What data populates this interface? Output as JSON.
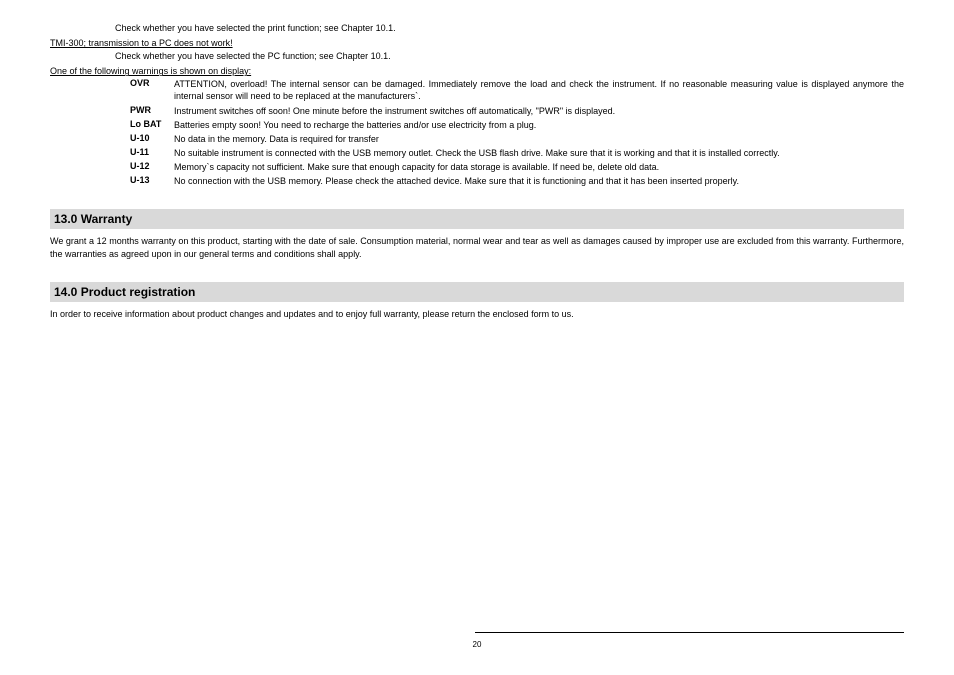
{
  "top": {
    "line1": "Check whether you have selected the print function; see Chapter 10.1.",
    "sub1": "TMI-300; transmission to a PC does not work!",
    "line2": "Check whether you have selected the PC function; see Chapter 10.1.",
    "sub2": "One of the following warnings is shown on display:"
  },
  "warnings": [
    {
      "code": "OVR",
      "desc": "ATTENTION, overload! The internal sensor can be damaged. Immediately remove the load and check the instrument. If no reasonable measuring value is displayed anymore the internal sensor will need to be replaced at the manufacturers`."
    },
    {
      "code": "PWR",
      "desc": "Instrument switches off soon! One minute before the instrument switches off automatically, \"PWR\" is displayed."
    },
    {
      "code": "Lo BAT",
      "desc": "Batteries empty soon! You need to recharge the batteries and/or use electricity from a plug."
    },
    {
      "code": "U-10",
      "desc": "No data in the memory. Data is required for transfer"
    },
    {
      "code": "U-11",
      "desc": "No suitable instrument is connected with the USB memory outlet. Check the USB flash drive. Make sure that it is working and that it is installed correctly."
    },
    {
      "code": "U-12",
      "desc": "Memory`s capacity not sufficient. Make sure that enough capacity for data storage is available. If need be, delete old data."
    },
    {
      "code": "U-13",
      "desc": "No connection with the USB memory. Please check the attached device. Make sure that it is functioning and that it has been inserted properly."
    }
  ],
  "sections": {
    "warranty": {
      "title": "13.0 Warranty",
      "body": "We grant a 12 months warranty on this product, starting with the date of sale. Consumption material, normal wear and tear as well as damages caused by improper use are excluded from this warranty. Furthermore, the warranties as agreed upon in our general terms and conditions shall apply."
    },
    "registration": {
      "title": "14.0 Product registration",
      "body": "In order to receive information about product changes and updates and to enjoy full warranty, please return the enclosed form to us."
    }
  },
  "pageNumber": "20"
}
